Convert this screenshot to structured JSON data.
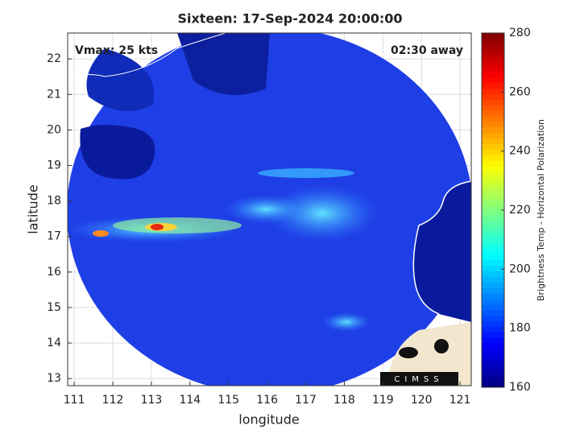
{
  "chart_data": {
    "type": "map",
    "title": "Sixteen: 17-Sep-2024 20:00:00",
    "annotations": [
      "Vmax: 25 kts",
      "02:30 away"
    ],
    "x_label": "longitude",
    "y_label": "latitude",
    "xlim": [
      110.83,
      121.29
    ],
    "ylim": [
      12.8,
      22.73
    ],
    "xticks": [
      111,
      112,
      113,
      114,
      115,
      116,
      117,
      118,
      119,
      120,
      121
    ],
    "yticks": [
      13,
      14,
      15,
      16,
      17,
      18,
      19,
      20,
      21,
      22
    ],
    "grid": true,
    "colorbar": {
      "label": "Brightness Temp - Horizontal Polarization",
      "colormap": "jet",
      "lim": [
        160,
        280
      ],
      "ticks": [
        160,
        180,
        200,
        220,
        240,
        260,
        280
      ]
    },
    "logo": "CIMSS"
  }
}
